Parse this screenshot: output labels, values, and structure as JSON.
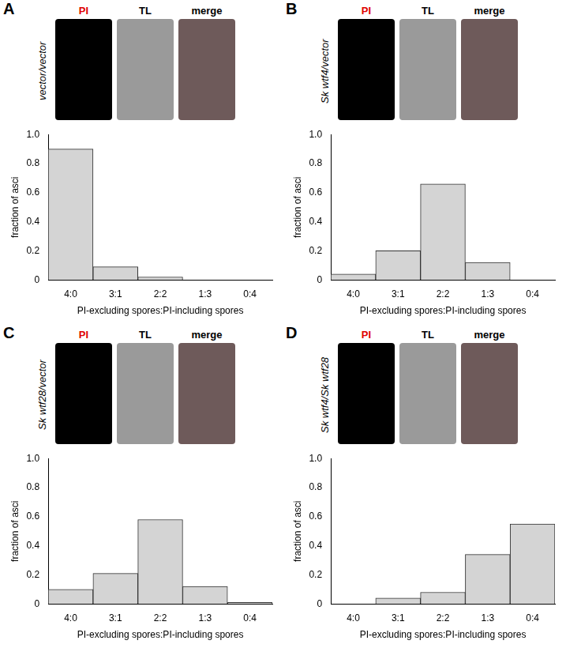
{
  "chart_data": [
    {
      "type": "bar",
      "panel": "A",
      "genotype": "vector/vector",
      "image_labels": [
        "PI",
        "TL",
        "merge"
      ],
      "x_label": "PI-excluding spores:PI-including spores",
      "y_label": "fraction of asci",
      "categories": [
        "4:0",
        "3:1",
        "2:2",
        "1:3",
        "0:4"
      ],
      "values": [
        0.9,
        0.09,
        0.02,
        0,
        0
      ],
      "color": "#d4d4d4",
      "ylim": [
        0,
        1
      ],
      "yticks": [
        0,
        0.2,
        0.4,
        0.6,
        0.8,
        {
          "value": 1,
          "label": "1.0"
        }
      ],
      "grid": false
    },
    {
      "type": "bar",
      "panel": "B",
      "genotype": "Sk wtf4/vector",
      "image_labels": [
        "PI",
        "TL",
        "merge"
      ],
      "x_label": "PI-excluding spores:PI-including spores",
      "y_label": "fraction of asci",
      "categories": [
        "4:0",
        "3:1",
        "2:2",
        "1:3",
        "0:4"
      ],
      "values": [
        0.04,
        0.2,
        0.66,
        0.12,
        0
      ],
      "color": "#d4d4d4",
      "ylim": [
        0,
        1
      ],
      "yticks": [
        0,
        0.2,
        0.4,
        0.6,
        0.8,
        {
          "value": 1,
          "label": "1.0"
        }
      ],
      "grid": false
    },
    {
      "type": "bar",
      "panel": "C",
      "genotype": "Sk wtf28/vector",
      "image_labels": [
        "PI",
        "TL",
        "merge"
      ],
      "x_label": "PI-excluding spores:PI-including spores",
      "y_label": "fraction of asci",
      "categories": [
        "4:0",
        "3:1",
        "2:2",
        "1:3",
        "0:4"
      ],
      "values": [
        0.1,
        0.21,
        0.58,
        0.12,
        0.01
      ],
      "color": "#d4d4d4",
      "ylim": [
        0,
        1
      ],
      "yticks": [
        0,
        0.2,
        0.4,
        0.6,
        0.8,
        {
          "value": 1,
          "label": "1.0"
        }
      ],
      "grid": false
    },
    {
      "type": "bar",
      "panel": "D",
      "genotype": "Sk wtf4/Sk wtf28",
      "image_labels": [
        "PI",
        "TL",
        "merge"
      ],
      "x_label": "PI-excluding spores:PI-including spores",
      "y_label": "fraction of asci",
      "categories": [
        "4:0",
        "3:1",
        "2:2",
        "1:3",
        "0:4"
      ],
      "values": [
        0,
        0.04,
        0.08,
        0.34,
        0.55
      ],
      "color": "#d4d4d4",
      "ylim": [
        0,
        1
      ],
      "yticks": [
        0,
        0.2,
        0.4,
        0.6,
        0.8,
        {
          "value": 1,
          "label": "1.0"
        }
      ],
      "grid": false
    }
  ]
}
